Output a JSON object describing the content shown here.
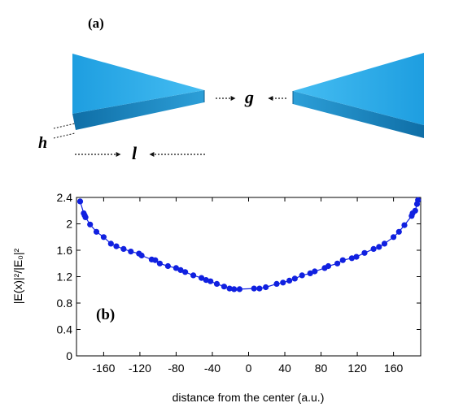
{
  "panel_a": {
    "label": "(a)",
    "gap_label": "g",
    "height_label": "h",
    "length_label": "l",
    "colors": {
      "face": "#2ba9e6",
      "side": "#1a7db4",
      "edge": "#0d5f8f"
    }
  },
  "chart_data": {
    "type": "line",
    "panel_label": "(b)",
    "xlabel": "distance from the center (a.u.)",
    "ylabel": "|E(x)|²/|E₀|²",
    "xlim": [
      -190,
      190
    ],
    "ylim": [
      0,
      2.4
    ],
    "xticks": [
      -160,
      -120,
      -80,
      -40,
      0,
      40,
      80,
      120,
      160
    ],
    "yticks": [
      0,
      0.4,
      0.8,
      1.2,
      1.6,
      2,
      2.4
    ],
    "grid": false,
    "color": "#1020e0",
    "series": [
      {
        "x": [
          -186,
          -182,
          -181,
          -180,
          -175,
          -168,
          -160,
          -152,
          -146,
          -138,
          -130,
          -121,
          -118,
          -107,
          -103,
          -98,
          -89,
          -80,
          -75,
          -70,
          -61,
          -52,
          -47,
          -42,
          -35,
          -27,
          -21,
          -16,
          -10,
          6,
          12,
          19,
          31,
          38,
          45,
          51,
          59,
          68,
          73,
          84,
          88,
          98,
          104,
          114,
          119,
          128,
          138,
          144,
          150,
          160,
          166,
          172,
          180,
          181,
          184,
          186,
          187
        ],
        "values": [
          2.34,
          2.16,
          2.13,
          2.1,
          1.99,
          1.88,
          1.8,
          1.7,
          1.66,
          1.62,
          1.58,
          1.55,
          1.52,
          1.46,
          1.45,
          1.4,
          1.36,
          1.33,
          1.3,
          1.27,
          1.22,
          1.18,
          1.15,
          1.13,
          1.09,
          1.05,
          1.02,
          1.01,
          1.01,
          1.02,
          1.02,
          1.04,
          1.09,
          1.11,
          1.14,
          1.17,
          1.22,
          1.25,
          1.28,
          1.33,
          1.36,
          1.4,
          1.45,
          1.48,
          1.5,
          1.56,
          1.62,
          1.65,
          1.7,
          1.8,
          1.88,
          1.98,
          2.12,
          2.16,
          2.2,
          2.3,
          2.36
        ]
      }
    ]
  }
}
